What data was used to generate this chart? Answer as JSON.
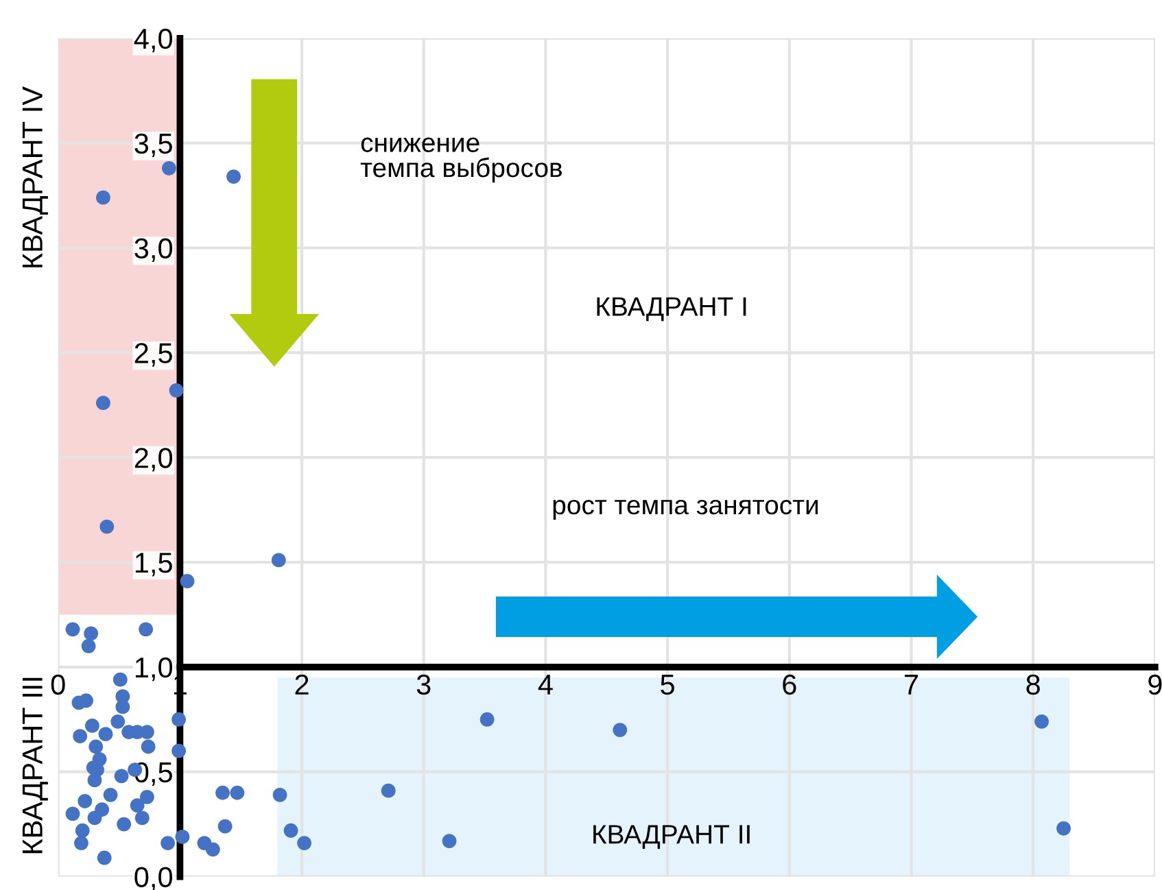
{
  "chart_data": {
    "type": "scatter",
    "x": [
      0.91,
      1.44,
      0.37,
      0.97,
      0.37,
      0.4,
      1.81,
      1.06,
      0.12,
      0.27,
      0.25,
      0.72,
      0.51,
      0.17,
      0.23,
      0.53,
      0.53,
      0.28,
      0.49,
      0.99,
      0.18,
      0.39,
      0.58,
      0.65,
      0.73,
      0.74,
      0.99,
      0.31,
      0.34,
      0.29,
      0.32,
      0.3,
      0.52,
      0.63,
      0.43,
      0.22,
      0.12,
      0.65,
      0.73,
      0.69,
      0.36,
      0.3,
      0.2,
      0.54,
      0.19,
      0.38,
      0.9,
      1.02,
      1.2,
      1.27,
      1.35,
      1.47,
      1.82,
      1.37,
      1.91,
      2.02,
      3.52,
      4.61,
      8.07,
      2.71,
      3.21,
      8.25
    ],
    "series": [
      {
        "color": "#4472c4",
        "values": [
          3.38,
          3.34,
          3.24,
          2.32,
          2.26,
          1.67,
          1.51,
          1.41,
          1.18,
          1.16,
          1.1,
          1.18,
          0.94,
          0.83,
          0.84,
          0.86,
          0.81,
          0.72,
          0.74,
          0.75,
          0.67,
          0.68,
          0.69,
          0.69,
          0.69,
          0.62,
          0.6,
          0.62,
          0.56,
          0.52,
          0.51,
          0.46,
          0.48,
          0.51,
          0.39,
          0.36,
          0.3,
          0.34,
          0.38,
          0.28,
          0.32,
          0.28,
          0.22,
          0.25,
          0.16,
          0.09,
          0.16,
          0.19,
          0.16,
          0.13,
          0.4,
          0.4,
          0.39,
          0.24,
          0.22,
          0.16,
          0.75,
          0.7,
          0.74,
          0.41,
          0.17,
          0.23
        ]
      }
    ],
    "marker": "circle",
    "xlim": [
      0,
      9
    ],
    "xticks": [
      0,
      1,
      2,
      3,
      4,
      5,
      6,
      7,
      8,
      9
    ],
    "ylim": [
      0,
      4.0
    ],
    "yticks": [
      {
        "value": 0,
        "label": "0,0"
      },
      {
        "value": 0.5,
        "label": "0,5"
      },
      {
        "value": 1.0,
        "label": "1,0"
      },
      {
        "value": 1.5,
        "label": "1,5"
      },
      {
        "value": 2.0,
        "label": "2,0"
      },
      {
        "value": 2.5,
        "label": "2,5"
      },
      {
        "value": 3.0,
        "label": "3,0"
      },
      {
        "value": 3.5,
        "label": "3,5"
      },
      {
        "value": 4.0,
        "label": "4,0"
      }
    ],
    "grid": true,
    "annotations": [
      "КВАДРАНТ IV",
      "КВАДРАНТ III",
      "КВАДРАНТ I",
      "КВАДРАНТ II",
      "снижение\nтемпа выбросов",
      "рост темпа занятости"
    ]
  }
}
